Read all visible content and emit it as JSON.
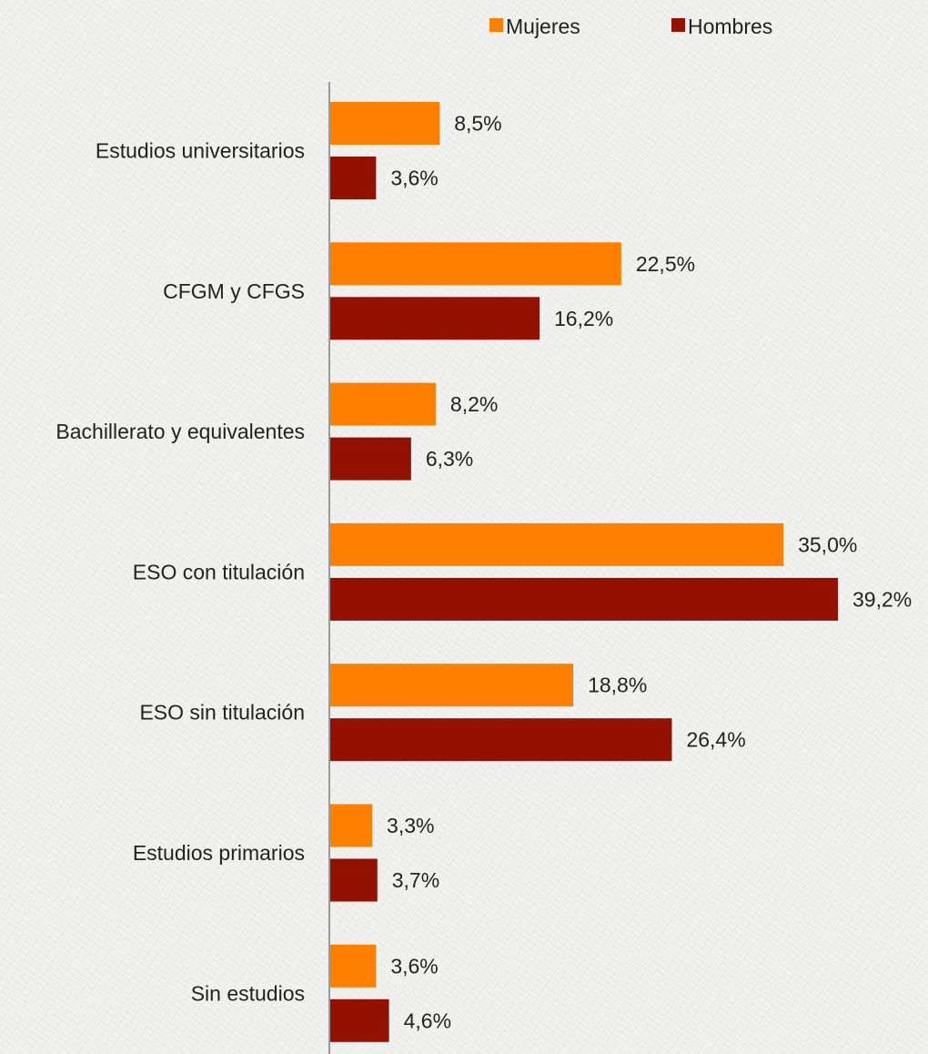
{
  "chart_data": {
    "type": "bar",
    "orientation": "horizontal",
    "categories": [
      "Estudios universitarios",
      "CFGM y CFGS",
      "Bachillerato y equivalentes",
      "ESO con titulación",
      "ESO sin titulación",
      "Estudios primarios",
      "Sin estudios"
    ],
    "series": [
      {
        "name": "Mujeres",
        "color": "#ff7f00",
        "values": [
          8.5,
          22.5,
          8.2,
          35.0,
          18.8,
          3.3,
          3.6
        ],
        "labels": [
          "8,5%",
          "22,5%",
          "8,2%",
          "35,0%",
          "18,8%",
          "3,3%",
          "3,6%"
        ]
      },
      {
        "name": "Hombres",
        "color": "#931100",
        "values": [
          3.6,
          16.2,
          6.3,
          39.2,
          26.4,
          3.7,
          4.6
        ],
        "labels": [
          "3,6%",
          "16,2%",
          "6,3%",
          "39,2%",
          "26,4%",
          "3,7%",
          "4,6%"
        ]
      }
    ],
    "legend": "top",
    "grid": false,
    "xlim": [
      0,
      40
    ]
  }
}
